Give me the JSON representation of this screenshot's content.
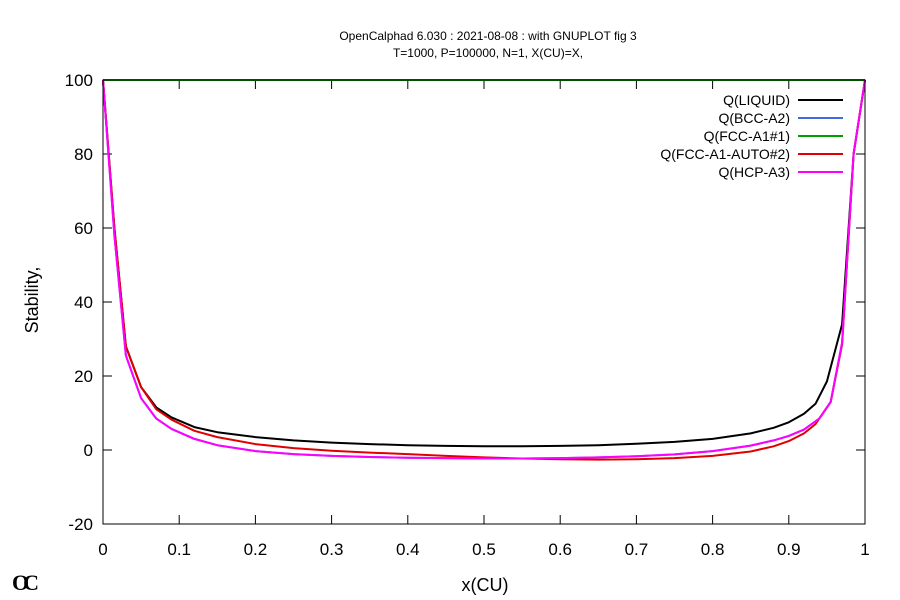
{
  "chart_data": {
    "type": "line",
    "title": "OpenCalphad    6.030 :  2021-08-08 : with GNUPLOT fig 3",
    "subtitle": "T=1000, P=100000, N=1, X(CU)=X,",
    "xlabel": "x(CU)",
    "ylabel": "Stability,",
    "xlim": [
      0,
      1
    ],
    "ylim": [
      -20,
      100
    ],
    "xticks": [
      "0",
      "0.1",
      "0.2",
      "0.3",
      "0.4",
      "0.5",
      "0.6",
      "0.7",
      "0.8",
      "0.9",
      "1"
    ],
    "yticks": [
      "-20",
      "0",
      "20",
      "40",
      "60",
      "80",
      "100"
    ],
    "legend_position": "top-right",
    "grid": false,
    "series": [
      {
        "name": "Q(LIQUID)",
        "color": "#000000",
        "x": [
          0,
          0.015,
          0.03,
          0.05,
          0.07,
          0.09,
          0.12,
          0.15,
          0.2,
          0.25,
          0.3,
          0.35,
          0.4,
          0.45,
          0.5,
          0.55,
          0.6,
          0.65,
          0.7,
          0.75,
          0.8,
          0.85,
          0.88,
          0.9,
          0.92,
          0.935,
          0.95,
          0.97,
          0.985,
          1
        ],
        "y": [
          100,
          60,
          28,
          17,
          11.5,
          8.8,
          6.2,
          4.8,
          3.5,
          2.6,
          2.0,
          1.6,
          1.3,
          1.1,
          1.0,
          1.0,
          1.1,
          1.3,
          1.7,
          2.2,
          3.0,
          4.5,
          6.0,
          7.5,
          9.8,
          12.5,
          18.5,
          34,
          80,
          100
        ]
      },
      {
        "name": "Q(BCC-A2)",
        "color": "#4169e1",
        "x": [
          0,
          0.015,
          0.03,
          0.05,
          0.07,
          0.09,
          0.12,
          0.15,
          0.2,
          0.25,
          0.3,
          0.35,
          0.4,
          0.45,
          0.5,
          0.55,
          0.6,
          0.65,
          0.7,
          0.75,
          0.8,
          0.85,
          0.88,
          0.9,
          0.92,
          0.94,
          0.955,
          0.97,
          0.985,
          1
        ],
        "y": [
          100,
          58,
          25.5,
          14,
          8.5,
          5.7,
          3.0,
          1.3,
          -0.3,
          -1.1,
          -1.6,
          -1.9,
          -2.1,
          -2.2,
          -2.3,
          -2.3,
          -2.2,
          -2.0,
          -1.7,
          -1.2,
          -0.3,
          1.2,
          2.6,
          3.8,
          5.5,
          8.5,
          13,
          29,
          80,
          100
        ]
      },
      {
        "name": "Q(FCC-A1#1)",
        "color": "#00a000",
        "x": [
          0,
          1
        ],
        "y": [
          100,
          100
        ]
      },
      {
        "name": "Q(FCC-A1-AUTO#2)",
        "color": "#e00000",
        "x": [
          0,
          0.015,
          0.03,
          0.05,
          0.07,
          0.09,
          0.12,
          0.15,
          0.2,
          0.25,
          0.3,
          0.35,
          0.4,
          0.45,
          0.5,
          0.55,
          0.6,
          0.65,
          0.7,
          0.75,
          0.8,
          0.85,
          0.88,
          0.9,
          0.92,
          0.935,
          0.955,
          0.97,
          0.985,
          1
        ],
        "y": [
          100,
          60,
          28,
          17,
          11,
          8.2,
          5.2,
          3.5,
          1.6,
          0.5,
          -0.2,
          -0.7,
          -1.1,
          -1.6,
          -2.0,
          -2.3,
          -2.5,
          -2.6,
          -2.5,
          -2.2,
          -1.6,
          -0.4,
          1.0,
          2.4,
          4.5,
          7.0,
          13,
          28.5,
          80,
          100
        ]
      },
      {
        "name": "Q(HCP-A3)",
        "color": "#ff00ff",
        "x": [
          0,
          0.015,
          0.03,
          0.05,
          0.07,
          0.09,
          0.12,
          0.15,
          0.2,
          0.25,
          0.3,
          0.35,
          0.4,
          0.45,
          0.5,
          0.55,
          0.6,
          0.65,
          0.7,
          0.75,
          0.8,
          0.85,
          0.88,
          0.9,
          0.92,
          0.94,
          0.955,
          0.97,
          0.985,
          1
        ],
        "y": [
          100,
          58,
          25.5,
          14,
          8.5,
          5.7,
          3.0,
          1.3,
          -0.3,
          -1.1,
          -1.6,
          -1.9,
          -2.1,
          -2.2,
          -2.3,
          -2.3,
          -2.2,
          -2.0,
          -1.7,
          -1.2,
          -0.3,
          1.2,
          2.6,
          3.8,
          5.5,
          8.5,
          13,
          29,
          80,
          100
        ]
      }
    ]
  },
  "logo_text": "OC"
}
